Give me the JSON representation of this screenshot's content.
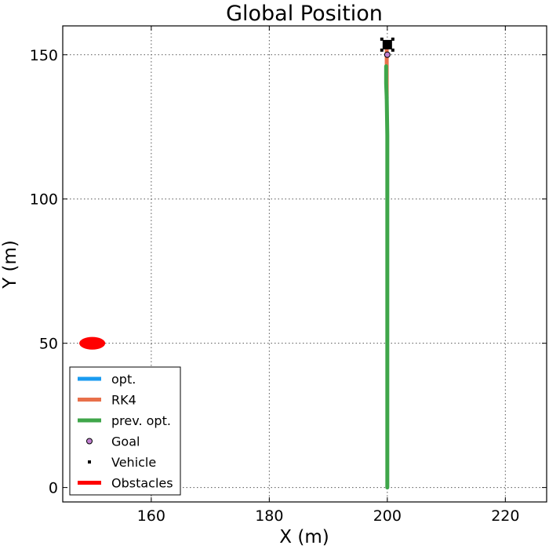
{
  "chart_data": {
    "type": "line",
    "title": "Global Position",
    "xlabel": "X (m)",
    "ylabel": "Y (m)",
    "xlim": [
      145,
      227
    ],
    "ylim": [
      -5,
      160
    ],
    "xticks": [
      160,
      180,
      200,
      220
    ],
    "yticks": [
      0,
      50,
      100,
      150
    ],
    "grid": true,
    "legend_position": "lower-left",
    "series": [
      {
        "name": "opt.",
        "kind": "line",
        "color": "#1a9bf0",
        "x": [],
        "y": []
      },
      {
        "name": "RK4",
        "kind": "line",
        "color": "#e8704a",
        "x": [
          199.9,
          199.9
        ],
        "y": [
          135,
          153
        ]
      },
      {
        "name": "prev. opt.",
        "kind": "line",
        "color": "#3fa64a",
        "x": [
          200.0,
          200.0,
          199.9,
          199.8,
          199.8
        ],
        "y": [
          0,
          122,
          135,
          140,
          146
        ]
      },
      {
        "name": "Goal",
        "kind": "marker",
        "color": "#c080d0",
        "x": [
          200
        ],
        "y": [
          150
        ]
      },
      {
        "name": "Vehicle",
        "kind": "marker",
        "color": "#000000",
        "x": [
          200
        ],
        "y": [
          153.5
        ]
      },
      {
        "name": "Obstacles",
        "kind": "ellipse",
        "color": "#ff0000",
        "cx": 150,
        "cy": 50,
        "rx": 2.2,
        "ry": 2.2
      }
    ]
  }
}
